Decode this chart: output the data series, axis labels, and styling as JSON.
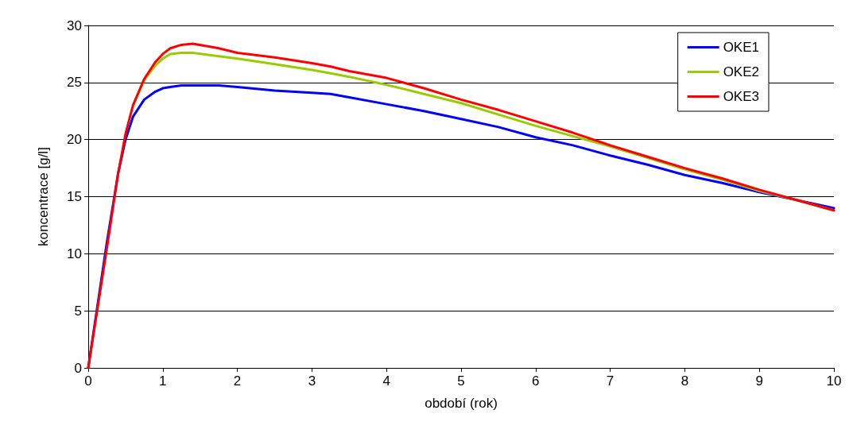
{
  "chart_data": {
    "type": "line",
    "xlabel": "období (rok)",
    "ylabel": "koncentrace [g/l]",
    "x": [
      0,
      0.25,
      0.4,
      0.5,
      0.6,
      0.75,
      0.9,
      1,
      1.1,
      1.25,
      1.4,
      1.75,
      2,
      2.5,
      3,
      3.25,
      3.5,
      4,
      4.5,
      5,
      5.5,
      6,
      6.5,
      7,
      7.5,
      8,
      8.5,
      9,
      9.5,
      10
    ],
    "series": [
      {
        "name": "OKE1",
        "color": "#0000ff",
        "values": [
          0,
          11,
          17,
          20,
          22,
          23.5,
          24.2,
          24.5,
          24.6,
          24.75,
          24.75,
          24.75,
          24.6,
          24.3,
          24.1,
          24,
          23.7,
          23.1,
          22.5,
          21.8,
          21.1,
          20.2,
          19.5,
          18.6,
          17.8,
          16.9,
          16.2,
          15.4,
          14.7,
          14
        ]
      },
      {
        "name": "OKE2",
        "color": "#99cc00",
        "values": [
          null,
          null,
          null,
          null,
          23,
          25.2,
          26.5,
          27.1,
          27.5,
          27.6,
          27.6,
          27.3,
          27.1,
          26.6,
          26.1,
          25.8,
          25.5,
          24.8,
          24,
          23.2,
          22.2,
          21.2,
          20.3,
          19.4,
          18.4,
          17.4,
          16.5,
          15.5,
          14.7,
          13.8
        ]
      },
      {
        "name": "OKE3",
        "color": "#ff0000",
        "values": [
          0,
          10.5,
          17,
          20.5,
          23,
          25.3,
          26.8,
          27.5,
          28,
          28.3,
          28.4,
          28,
          27.6,
          27.2,
          26.7,
          26.4,
          26,
          25.4,
          24.5,
          23.5,
          22.6,
          21.6,
          20.6,
          19.5,
          18.5,
          17.5,
          16.6,
          15.6,
          14.7,
          13.8
        ]
      }
    ],
    "xlim": [
      0,
      10
    ],
    "xticks": [
      0,
      1,
      2,
      3,
      4,
      5,
      6,
      7,
      8,
      9,
      10
    ],
    "ylim": [
      0,
      30
    ],
    "yticks": [
      0,
      5,
      10,
      15,
      20,
      25,
      30
    ],
    "grid": "y",
    "legend": "top right",
    "marker": "none",
    "line_style": "solid"
  }
}
